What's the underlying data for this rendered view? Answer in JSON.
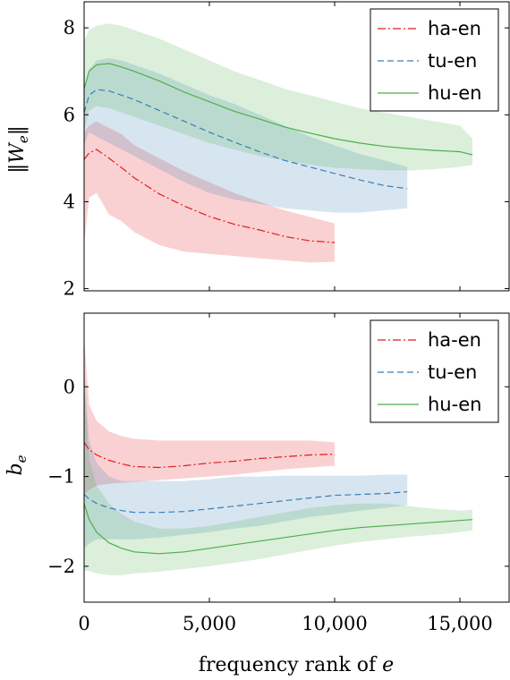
{
  "xlabel": "frequency rank of e",
  "colors": {
    "ha-en": "#e41a1c",
    "tu-en": "#377eb8",
    "hu-en": "#4daf4a"
  },
  "chart_data": [
    {
      "type": "line",
      "title": "",
      "xlabel": "frequency rank of e",
      "ylabel": "||W_e||",
      "xlim": [
        0,
        17000
      ],
      "ylim": [
        1.95,
        8.6
      ],
      "x_ticks": [
        0,
        5000,
        10000,
        15000
      ],
      "x_tick_labels": [
        "0",
        "5,000",
        "10,000",
        "15,000"
      ],
      "y_ticks": [
        2,
        4,
        6,
        8
      ],
      "y_tick_labels": [
        "2",
        "4",
        "6",
        "8"
      ],
      "grid": false,
      "legend": "top-right",
      "legend_entries": [
        "ha-en",
        "tu-en",
        "hu-en"
      ],
      "series": [
        {
          "name": "ha-en",
          "style": "dash-dot",
          "x": [
            0,
            200,
            500,
            800,
            1000,
            1500,
            2000,
            3000,
            4000,
            5000,
            6000,
            7000,
            8000,
            9000,
            10000
          ],
          "y": [
            4.97,
            5.12,
            5.2,
            5.08,
            5.0,
            4.78,
            4.55,
            4.18,
            3.9,
            3.66,
            3.48,
            3.35,
            3.2,
            3.1,
            3.06
          ],
          "lower": [
            3.0,
            4.1,
            4.2,
            3.9,
            3.7,
            3.55,
            3.3,
            3.0,
            2.85,
            2.8,
            2.75,
            2.7,
            2.65,
            2.6,
            2.62
          ],
          "upper": [
            5.6,
            5.75,
            5.85,
            5.75,
            5.7,
            5.55,
            5.3,
            5.0,
            4.7,
            4.45,
            4.2,
            4.0,
            3.8,
            3.65,
            3.5
          ]
        },
        {
          "name": "tu-en",
          "style": "dashed",
          "x": [
            0,
            200,
            500,
            1000,
            1500,
            2000,
            3000,
            4000,
            5000,
            6000,
            7000,
            8000,
            9000,
            10000,
            11000,
            12000,
            12900
          ],
          "y": [
            6.05,
            6.45,
            6.58,
            6.55,
            6.45,
            6.35,
            6.1,
            5.85,
            5.6,
            5.37,
            5.15,
            4.95,
            4.8,
            4.65,
            4.5,
            4.37,
            4.3
          ],
          "lower": [
            5.3,
            5.6,
            5.5,
            5.35,
            5.2,
            5.05,
            4.75,
            4.45,
            4.2,
            4.05,
            3.95,
            3.85,
            3.8,
            3.75,
            3.75,
            3.8,
            3.85
          ],
          "upper": [
            6.6,
            7.05,
            7.25,
            7.3,
            7.25,
            7.15,
            6.95,
            6.7,
            6.45,
            6.25,
            6.0,
            5.75,
            5.5,
            5.3,
            5.1,
            4.95,
            4.8
          ]
        },
        {
          "name": "hu-en",
          "style": "solid",
          "x": [
            0,
            200,
            500,
            1000,
            1500,
            2000,
            3000,
            4000,
            5000,
            6000,
            7000,
            8000,
            9000,
            10000,
            11000,
            12000,
            13000,
            14000,
            15000,
            15500
          ],
          "y": [
            6.6,
            7.0,
            7.15,
            7.18,
            7.1,
            7.0,
            6.78,
            6.52,
            6.3,
            6.08,
            5.9,
            5.72,
            5.58,
            5.45,
            5.35,
            5.27,
            5.22,
            5.18,
            5.15,
            5.08
          ],
          "lower": [
            5.6,
            6.1,
            6.2,
            6.15,
            6.05,
            5.95,
            5.75,
            5.55,
            5.35,
            5.2,
            5.05,
            4.95,
            4.85,
            4.78,
            4.75,
            4.72,
            4.72,
            4.75,
            4.8,
            4.85
          ],
          "upper": [
            7.7,
            7.95,
            8.05,
            8.1,
            8.05,
            7.95,
            7.75,
            7.5,
            7.25,
            7.0,
            6.8,
            6.6,
            6.45,
            6.3,
            6.15,
            6.05,
            5.95,
            5.85,
            5.75,
            5.45
          ]
        }
      ]
    },
    {
      "type": "line",
      "title": "",
      "xlabel": "frequency rank of e",
      "ylabel": "b_e",
      "xlim": [
        0,
        17000
      ],
      "ylim": [
        -2.4,
        0.82
      ],
      "x_ticks": [
        0,
        5000,
        10000,
        15000
      ],
      "x_tick_labels": [
        "0",
        "5,000",
        "10,000",
        "15,000"
      ],
      "y_ticks": [
        -2,
        -1,
        0
      ],
      "y_tick_labels": [
        "−2",
        "−1",
        "0"
      ],
      "grid": false,
      "legend": "top-right",
      "legend_entries": [
        "ha-en",
        "tu-en",
        "hu-en"
      ],
      "series": [
        {
          "name": "ha-en",
          "style": "dash-dot",
          "x": [
            0,
            200,
            500,
            1000,
            1500,
            2000,
            3000,
            4000,
            5000,
            6000,
            7000,
            8000,
            9000,
            10000
          ],
          "y": [
            -0.62,
            -0.7,
            -0.76,
            -0.82,
            -0.86,
            -0.89,
            -0.9,
            -0.88,
            -0.85,
            -0.83,
            -0.8,
            -0.78,
            -0.76,
            -0.75
          ],
          "lower": [
            -1.2,
            -1.15,
            -1.1,
            -1.08,
            -1.07,
            -1.06,
            -1.04,
            -1.02,
            -1.0,
            -0.98,
            -0.95,
            -0.92,
            -0.9,
            -0.88
          ],
          "upper": [
            0.55,
            -0.2,
            -0.38,
            -0.5,
            -0.55,
            -0.58,
            -0.6,
            -0.6,
            -0.6,
            -0.6,
            -0.6,
            -0.6,
            -0.6,
            -0.62
          ]
        },
        {
          "name": "tu-en",
          "style": "dashed",
          "x": [
            0,
            200,
            500,
            1000,
            1500,
            2000,
            3000,
            4000,
            5000,
            6000,
            7000,
            8000,
            9000,
            10000,
            11000,
            12000,
            12900
          ],
          "y": [
            -1.2,
            -1.25,
            -1.3,
            -1.35,
            -1.38,
            -1.4,
            -1.4,
            -1.39,
            -1.36,
            -1.33,
            -1.3,
            -1.27,
            -1.24,
            -1.21,
            -1.2,
            -1.19,
            -1.17
          ],
          "lower": [
            -1.8,
            -1.75,
            -1.7,
            -1.7,
            -1.7,
            -1.7,
            -1.68,
            -1.65,
            -1.62,
            -1.58,
            -1.55,
            -1.5,
            -1.45,
            -1.42,
            -1.38,
            -1.35,
            -1.32
          ],
          "upper": [
            0.2,
            -0.6,
            -0.85,
            -1.0,
            -1.05,
            -1.05,
            -1.05,
            -1.05,
            -1.03,
            -1.0,
            -1.0,
            -0.99,
            -0.99,
            -0.99,
            -0.99,
            -0.98,
            -0.98
          ]
        },
        {
          "name": "hu-en",
          "style": "solid",
          "x": [
            0,
            200,
            500,
            1000,
            1500,
            2000,
            3000,
            4000,
            5000,
            6000,
            7000,
            8000,
            9000,
            10000,
            11000,
            12000,
            13000,
            14000,
            15000,
            15500
          ],
          "y": [
            -1.3,
            -1.48,
            -1.62,
            -1.74,
            -1.8,
            -1.84,
            -1.86,
            -1.84,
            -1.8,
            -1.76,
            -1.72,
            -1.68,
            -1.64,
            -1.6,
            -1.57,
            -1.55,
            -1.53,
            -1.51,
            -1.49,
            -1.48
          ],
          "lower": [
            -2.05,
            -2.05,
            -2.08,
            -2.1,
            -2.1,
            -2.08,
            -2.06,
            -2.03,
            -2.0,
            -1.96,
            -1.92,
            -1.87,
            -1.82,
            -1.77,
            -1.73,
            -1.7,
            -1.67,
            -1.65,
            -1.62,
            -1.6
          ],
          "upper": [
            0.0,
            -0.8,
            -1.1,
            -1.3,
            -1.42,
            -1.5,
            -1.58,
            -1.58,
            -1.55,
            -1.5,
            -1.45,
            -1.4,
            -1.35,
            -1.32,
            -1.3,
            -1.3,
            -1.33,
            -1.36,
            -1.38,
            -1.37
          ]
        }
      ]
    }
  ]
}
